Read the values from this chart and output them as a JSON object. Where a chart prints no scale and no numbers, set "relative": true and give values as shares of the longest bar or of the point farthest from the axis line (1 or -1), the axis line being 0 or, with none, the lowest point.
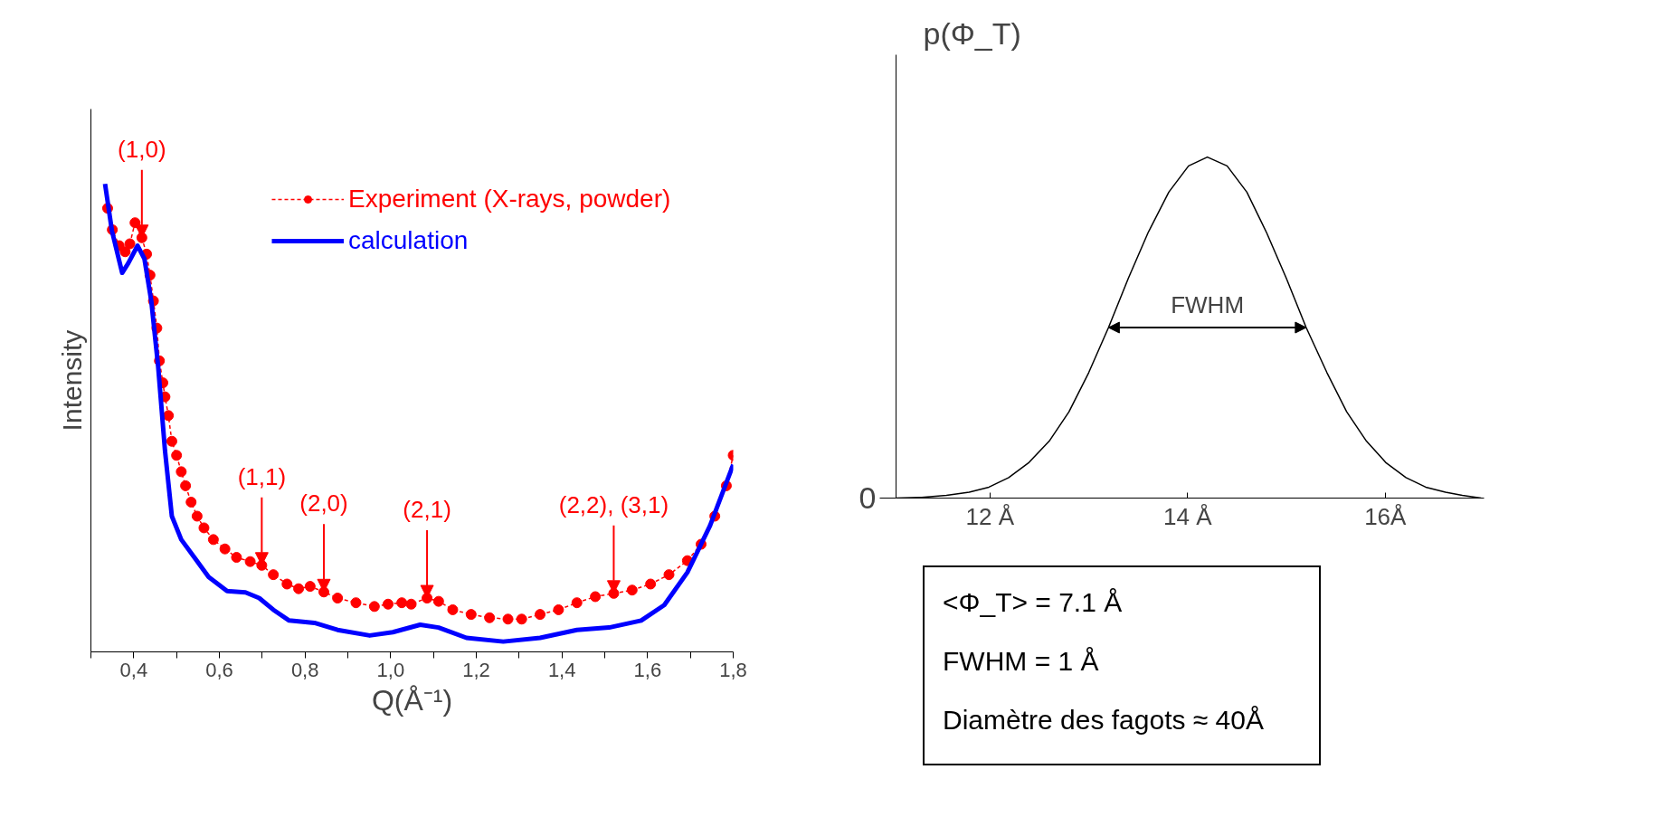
{
  "chart_data": [
    {
      "type": "line",
      "xlabel": "Q(Å⁻¹)",
      "ylabel": "Intensity",
      "relative": true,
      "xlim": [
        0.3,
        1.8
      ],
      "xticks": [
        {
          "value": 0.3,
          "label": null
        },
        {
          "value": 0.4,
          "label": "0,4"
        },
        {
          "value": 0.5,
          "label": null
        },
        {
          "value": 0.6,
          "label": "0,6"
        },
        {
          "value": 0.7,
          "label": null
        },
        {
          "value": 0.8,
          "label": "0,8"
        },
        {
          "value": 0.9,
          "label": null
        },
        {
          "value": 1.0,
          "label": "1,0"
        },
        {
          "value": 1.1,
          "label": null
        },
        {
          "value": 1.2,
          "label": "1,2"
        },
        {
          "value": 1.3,
          "label": null
        },
        {
          "value": 1.4,
          "label": "1,4"
        },
        {
          "value": 1.5,
          "label": null
        },
        {
          "value": 1.6,
          "label": "1,6"
        },
        {
          "value": 1.7,
          "label": null
        },
        {
          "value": 1.8,
          "label": "1,8"
        }
      ],
      "legend": "top right",
      "grid": false,
      "series": [
        {
          "name": "Experiment (X-rays, powder)",
          "color": "#ff0000",
          "marker": "circle",
          "line_style": "dashed",
          "x": [
            0.339,
            0.35,
            0.366,
            0.38,
            0.391,
            0.403,
            0.419,
            0.43,
            0.438,
            0.446,
            0.454,
            0.46,
            0.468,
            0.473,
            0.481,
            0.489,
            0.5,
            0.511,
            0.521,
            0.534,
            0.548,
            0.564,
            0.586,
            0.613,
            0.64,
            0.672,
            0.699,
            0.726,
            0.758,
            0.785,
            0.812,
            0.844,
            0.876,
            0.919,
            0.962,
            0.994,
            1.026,
            1.048,
            1.085,
            1.112,
            1.145,
            1.188,
            1.231,
            1.274,
            1.306,
            1.349,
            1.392,
            1.435,
            1.478,
            1.521,
            1.564,
            1.607,
            1.65,
            1.693,
            1.725,
            1.757,
            1.784,
            1.8
          ],
          "values": [
            0.948,
            0.902,
            0.868,
            0.855,
            0.872,
            0.917,
            0.885,
            0.85,
            0.805,
            0.75,
            0.692,
            0.622,
            0.575,
            0.545,
            0.505,
            0.45,
            0.42,
            0.385,
            0.355,
            0.32,
            0.29,
            0.265,
            0.24,
            0.22,
            0.202,
            0.193,
            0.185,
            0.165,
            0.145,
            0.135,
            0.14,
            0.128,
            0.115,
            0.105,
            0.097,
            0.102,
            0.105,
            0.102,
            0.115,
            0.108,
            0.09,
            0.08,
            0.073,
            0.07,
            0.07,
            0.08,
            0.09,
            0.105,
            0.118,
            0.125,
            0.132,
            0.145,
            0.165,
            0.195,
            0.23,
            0.29,
            0.355,
            0.42
          ]
        },
        {
          "name": "calculation",
          "color": "#0000ff",
          "marker": "none",
          "line_style": "solid",
          "x": [
            0.333,
            0.349,
            0.373,
            0.387,
            0.409,
            0.425,
            0.441,
            0.457,
            0.473,
            0.489,
            0.511,
            0.543,
            0.575,
            0.618,
            0.661,
            0.693,
            0.726,
            0.763,
            0.822,
            0.876,
            0.951,
            1.005,
            1.069,
            1.112,
            1.177,
            1.263,
            1.349,
            1.435,
            1.51,
            1.585,
            1.639,
            1.693,
            1.746,
            1.8
          ],
          "values": [
            1.0,
            0.9,
            0.81,
            0.83,
            0.868,
            0.84,
            0.75,
            0.61,
            0.43,
            0.29,
            0.24,
            0.2,
            0.16,
            0.13,
            0.127,
            0.115,
            0.09,
            0.067,
            0.062,
            0.047,
            0.035,
            0.042,
            0.058,
            0.052,
            0.03,
            0.022,
            0.03,
            0.047,
            0.052,
            0.067,
            0.1,
            0.17,
            0.27,
            0.4
          ]
        }
      ],
      "annotations": [
        {
          "text": "(1,0)",
          "x": 0.419,
          "y": 0.885
        },
        {
          "text": "(1,1)",
          "x": 0.699,
          "y": 0.185
        },
        {
          "text": "(2,0)",
          "x": 0.844,
          "y": 0.128
        },
        {
          "text": "(2,1)",
          "x": 1.085,
          "y": 0.115
        },
        {
          "text": "(2,2), (3,1)",
          "x": 1.521,
          "y": 0.125
        }
      ]
    },
    {
      "type": "line",
      "ylabel": "p(Φ_T)",
      "relative": true,
      "xlim": [
        11.05,
        17.0
      ],
      "xticks": [
        {
          "value": 12,
          "label": "12 Å"
        },
        {
          "value": 14,
          "label": "14 Å"
        },
        {
          "value": 16,
          "label": "16Å"
        }
      ],
      "grid": false,
      "series": [
        {
          "color": "#000000",
          "x": [
            11.05,
            11.31,
            11.56,
            11.79,
            11.99,
            12.19,
            12.39,
            12.6,
            12.8,
            13.0,
            13.2,
            13.4,
            13.6,
            13.81,
            14.01,
            14.2,
            14.4,
            14.6,
            14.8,
            15.0,
            15.2,
            15.41,
            15.61,
            15.81,
            16.01,
            16.21,
            16.41,
            16.61,
            16.78,
            16.97
          ],
          "values": [
            0,
            0.002,
            0.008,
            0.017,
            0.032,
            0.06,
            0.103,
            0.167,
            0.253,
            0.368,
            0.5,
            0.644,
            0.778,
            0.897,
            0.974,
            1.0,
            0.974,
            0.897,
            0.778,
            0.644,
            0.5,
            0.368,
            0.253,
            0.167,
            0.103,
            0.06,
            0.032,
            0.017,
            0.008,
            0
          ]
        }
      ],
      "annotations": [
        "0",
        {
          "text": "FWHM",
          "x": 13.2,
          "y": 0.5
        },
        "<Φ_T> = 7.1 Å",
        "FWHM = 1 Å",
        "Diamètre des fagots ≈ 40Å"
      ]
    }
  ]
}
